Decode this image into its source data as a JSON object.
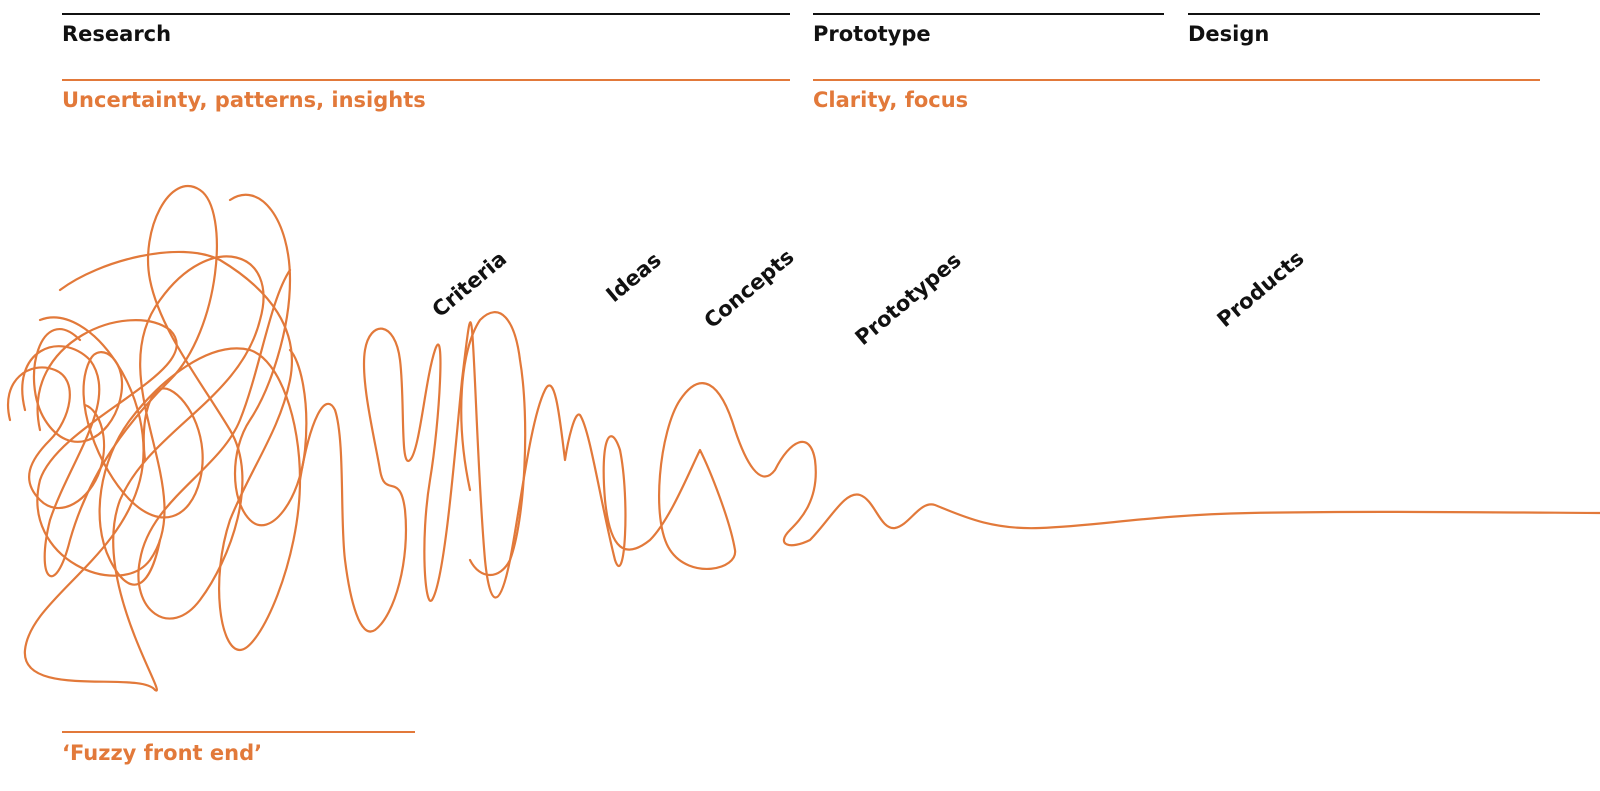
{
  "phases": {
    "research": "Research",
    "prototype": "Prototype",
    "design": "Design"
  },
  "qualities": {
    "research": "Uncertainty, patterns, insights",
    "design": "Clarity, focus"
  },
  "stages": {
    "criteria": "Criteria",
    "ideas": "Ideas",
    "concepts": "Concepts",
    "prototypes": "Prototypes",
    "products": "Products"
  },
  "fuzzy_front_end": "‘Fuzzy front end’",
  "colors": {
    "accent": "#e2793a",
    "text": "#111111",
    "background": "#ffffff"
  }
}
